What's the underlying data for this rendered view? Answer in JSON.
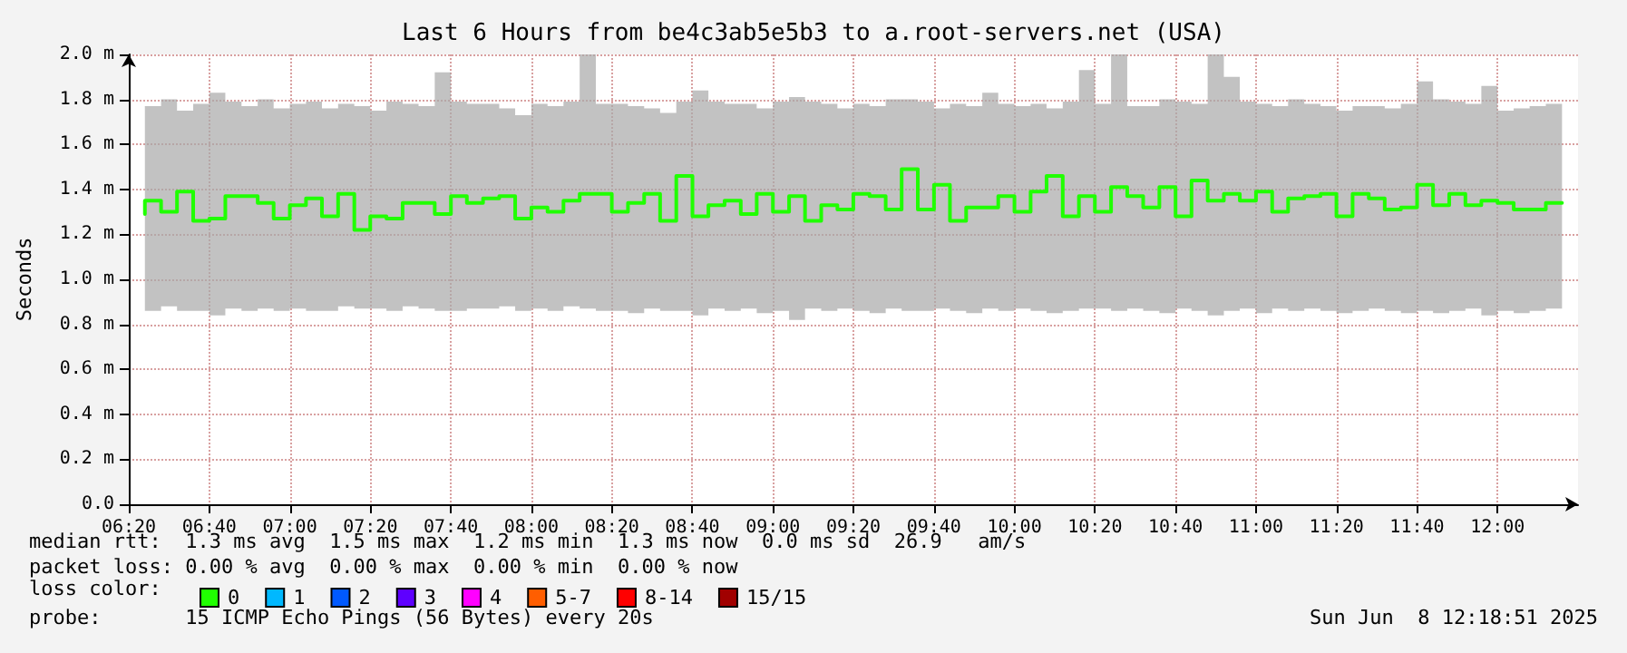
{
  "chart_data": {
    "type": "step",
    "title": "Last 6 Hours from be4c3ab5e5b3 to a.root-servers.net (USA)",
    "ylabel": "Seconds",
    "x": [
      6.4,
      6.467,
      6.533,
      6.6,
      6.667,
      6.733,
      6.8,
      6.867,
      6.933,
      7.0,
      7.067,
      7.133,
      7.2,
      7.267,
      7.333,
      7.4,
      7.467,
      7.533,
      7.6,
      7.667,
      7.733,
      7.8,
      7.867,
      7.933,
      8.0,
      8.067,
      8.133,
      8.2,
      8.267,
      8.333,
      8.4,
      8.467,
      8.533,
      8.6,
      8.667,
      8.733,
      8.8,
      8.867,
      8.933,
      9.0,
      9.067,
      9.133,
      9.2,
      9.267,
      9.333,
      9.4,
      9.467,
      9.533,
      9.6,
      9.667,
      9.733,
      9.8,
      9.867,
      9.933,
      10.0,
      10.067,
      10.133,
      10.2,
      10.267,
      10.333,
      10.4,
      10.467,
      10.533,
      10.6,
      10.667,
      10.733,
      10.8,
      10.867,
      10.933,
      11.0,
      11.067,
      11.133,
      11.2,
      11.267,
      11.333,
      11.4,
      11.467,
      11.533,
      11.6,
      11.667,
      11.733,
      11.8,
      11.867,
      11.933,
      12.0,
      12.067,
      12.133,
      12.2,
      12.267
    ],
    "series": [
      {
        "name": "0",
        "color": "#20ff00",
        "values": [
          1.29,
          1.35,
          1.3,
          1.39,
          1.26,
          1.27,
          1.37,
          1.37,
          1.34,
          1.27,
          1.33,
          1.36,
          1.28,
          1.38,
          1.22,
          1.28,
          1.27,
          1.34,
          1.34,
          1.29,
          1.37,
          1.34,
          1.36,
          1.37,
          1.27,
          1.32,
          1.3,
          1.35,
          1.38,
          1.38,
          1.3,
          1.34,
          1.38,
          1.26,
          1.46,
          1.28,
          1.33,
          1.35,
          1.29,
          1.38,
          1.3,
          1.37,
          1.26,
          1.33,
          1.31,
          1.38,
          1.37,
          1.31,
          1.49,
          1.31,
          1.42,
          1.26,
          1.32,
          1.32,
          1.37,
          1.3,
          1.39,
          1.46,
          1.28,
          1.37,
          1.3,
          1.41,
          1.37,
          1.32,
          1.41,
          1.28,
          1.44,
          1.35,
          1.38,
          1.35,
          1.39,
          1.3,
          1.36,
          1.37,
          1.38,
          1.28,
          1.38,
          1.36,
          1.31,
          1.32,
          1.42,
          1.33,
          1.38,
          1.33,
          1.35,
          1.34,
          1.31,
          1.31,
          1.34
        ],
        "lower": [
          0.86,
          0.86,
          0.88,
          0.86,
          0.86,
          0.84,
          0.87,
          0.86,
          0.87,
          0.86,
          0.87,
          0.86,
          0.86,
          0.88,
          0.87,
          0.87,
          0.86,
          0.88,
          0.87,
          0.86,
          0.86,
          0.87,
          0.87,
          0.88,
          0.86,
          0.87,
          0.86,
          0.88,
          0.87,
          0.86,
          0.86,
          0.85,
          0.87,
          0.86,
          0.86,
          0.84,
          0.87,
          0.86,
          0.87,
          0.85,
          0.86,
          0.82,
          0.87,
          0.86,
          0.87,
          0.86,
          0.85,
          0.87,
          0.86,
          0.86,
          0.87,
          0.86,
          0.85,
          0.87,
          0.86,
          0.87,
          0.86,
          0.85,
          0.86,
          0.87,
          0.87,
          0.86,
          0.87,
          0.86,
          0.85,
          0.87,
          0.86,
          0.84,
          0.86,
          0.87,
          0.85,
          0.87,
          0.86,
          0.87,
          0.86,
          0.85,
          0.86,
          0.87,
          0.86,
          0.85,
          0.86,
          0.85,
          0.86,
          0.87,
          0.84,
          0.86,
          0.85,
          0.86,
          0.87
        ],
        "upper": [
          1.78,
          1.77,
          1.8,
          1.75,
          1.78,
          1.83,
          1.79,
          1.77,
          1.8,
          1.76,
          1.78,
          1.79,
          1.76,
          1.78,
          1.77,
          1.75,
          1.79,
          1.78,
          1.77,
          1.92,
          1.79,
          1.78,
          1.78,
          1.76,
          1.73,
          1.78,
          1.77,
          1.79,
          2.0,
          1.78,
          1.78,
          1.77,
          1.76,
          1.74,
          1.79,
          1.84,
          1.79,
          1.78,
          1.78,
          1.76,
          1.79,
          1.81,
          1.79,
          1.78,
          1.76,
          1.78,
          1.77,
          1.8,
          1.8,
          1.79,
          1.76,
          1.78,
          1.77,
          1.83,
          1.78,
          1.77,
          1.78,
          1.76,
          1.79,
          1.93,
          1.78,
          2.0,
          1.77,
          1.77,
          1.8,
          1.79,
          1.78,
          2.0,
          1.9,
          1.79,
          1.78,
          1.77,
          1.8,
          1.78,
          1.77,
          1.75,
          1.77,
          1.77,
          1.76,
          1.78,
          1.88,
          1.8,
          1.79,
          1.78,
          1.86,
          1.75,
          1.76,
          1.77,
          1.78
        ]
      },
      {
        "name": "1",
        "color": "#00b8ff",
        "values": [
          null,
          null,
          null,
          null,
          null,
          null,
          null,
          null,
          null,
          null,
          null,
          null,
          null,
          null,
          null,
          null,
          null,
          null,
          null,
          null,
          null,
          null,
          null,
          null,
          null,
          null,
          null,
          null,
          null,
          null,
          null,
          null,
          null,
          null,
          null,
          null,
          null,
          null,
          null,
          null,
          null,
          null,
          null,
          null,
          null,
          null,
          null,
          null,
          null,
          null,
          null,
          null,
          null,
          null,
          null,
          null,
          null,
          null,
          null,
          null,
          null,
          null,
          null,
          null,
          null,
          null,
          null,
          null,
          null,
          null,
          null,
          null,
          null,
          null,
          null,
          null,
          null,
          null,
          null,
          null,
          null,
          null,
          null,
          null,
          null,
          null,
          null,
          null,
          null
        ]
      },
      {
        "name": "2",
        "color": "#0059ff",
        "values": [
          null,
          null,
          null,
          null,
          null,
          null,
          null,
          null,
          null,
          null,
          null,
          null,
          null,
          null,
          null,
          null,
          null,
          null,
          null,
          null,
          null,
          null,
          null,
          null,
          null,
          null,
          null,
          null,
          null,
          null,
          null,
          null,
          null,
          null,
          null,
          null,
          null,
          null,
          null,
          null,
          null,
          null,
          null,
          null,
          null,
          null,
          null,
          null,
          null,
          null,
          null,
          null,
          null,
          null,
          null,
          null,
          null,
          null,
          null,
          null,
          null,
          null,
          null,
          null,
          null,
          null,
          null,
          null,
          null,
          null,
          null,
          null,
          null,
          null,
          null,
          null,
          null,
          null,
          null,
          null,
          null,
          null,
          null,
          null,
          null,
          null,
          null,
          null,
          null
        ]
      },
      {
        "name": "3",
        "color": "#5e00ff",
        "values": [
          null,
          null,
          null,
          null,
          null,
          null,
          null,
          null,
          null,
          null,
          null,
          null,
          null,
          null,
          null,
          null,
          null,
          null,
          null,
          null,
          null,
          null,
          null,
          null,
          null,
          null,
          null,
          null,
          null,
          null,
          null,
          null,
          null,
          null,
          null,
          null,
          null,
          null,
          null,
          null,
          null,
          null,
          null,
          null,
          null,
          null,
          null,
          null,
          null,
          null,
          null,
          null,
          null,
          null,
          null,
          null,
          null,
          null,
          null,
          null,
          null,
          null,
          null,
          null,
          null,
          null,
          null,
          null,
          null,
          null,
          null,
          null,
          null,
          null,
          null,
          null,
          null,
          null,
          null,
          null,
          null,
          null,
          null,
          null,
          null,
          null,
          null,
          null,
          null
        ]
      },
      {
        "name": "4",
        "color": "#ff00ff",
        "values": [
          null,
          null,
          null,
          null,
          null,
          null,
          null,
          null,
          null,
          null,
          null,
          null,
          null,
          null,
          null,
          null,
          null,
          null,
          null,
          null,
          null,
          null,
          null,
          null,
          null,
          null,
          null,
          null,
          null,
          null,
          null,
          null,
          null,
          null,
          null,
          null,
          null,
          null,
          null,
          null,
          null,
          null,
          null,
          null,
          null,
          null,
          null,
          null,
          null,
          null,
          null,
          null,
          null,
          null,
          null,
          null,
          null,
          null,
          null,
          null,
          null,
          null,
          null,
          null,
          null,
          null,
          null,
          null,
          null,
          null,
          null,
          null,
          null,
          null,
          null,
          null,
          null,
          null,
          null,
          null,
          null,
          null,
          null,
          null,
          null,
          null,
          null,
          null,
          null
        ]
      },
      {
        "name": "5-7",
        "color": "#ff5e00",
        "values": [
          null,
          null,
          null,
          null,
          null,
          null,
          null,
          null,
          null,
          null,
          null,
          null,
          null,
          null,
          null,
          null,
          null,
          null,
          null,
          null,
          null,
          null,
          null,
          null,
          null,
          null,
          null,
          null,
          null,
          null,
          null,
          null,
          null,
          null,
          null,
          null,
          null,
          null,
          null,
          null,
          null,
          null,
          null,
          null,
          null,
          null,
          null,
          null,
          null,
          null,
          null,
          null,
          null,
          null,
          null,
          null,
          null,
          null,
          null,
          null,
          null,
          null,
          null,
          null,
          null,
          null,
          null,
          null,
          null,
          null,
          null,
          null,
          null,
          null,
          null,
          null,
          null,
          null,
          null,
          null,
          null,
          null,
          null,
          null,
          null,
          null,
          null,
          null,
          null
        ]
      },
      {
        "name": "8-14",
        "color": "#ff0000",
        "values": [
          null,
          null,
          null,
          null,
          null,
          null,
          null,
          null,
          null,
          null,
          null,
          null,
          null,
          null,
          null,
          null,
          null,
          null,
          null,
          null,
          null,
          null,
          null,
          null,
          null,
          null,
          null,
          null,
          null,
          null,
          null,
          null,
          null,
          null,
          null,
          null,
          null,
          null,
          null,
          null,
          null,
          null,
          null,
          null,
          null,
          null,
          null,
          null,
          null,
          null,
          null,
          null,
          null,
          null,
          null,
          null,
          null,
          null,
          null,
          null,
          null,
          null,
          null,
          null,
          null,
          null,
          null,
          null,
          null,
          null,
          null,
          null,
          null,
          null,
          null,
          null,
          null,
          null,
          null,
          null,
          null,
          null,
          null,
          null,
          null,
          null,
          null,
          null,
          null
        ]
      },
      {
        "name": "15/15",
        "color": "#a10000",
        "values": [
          null,
          null,
          null,
          null,
          null,
          null,
          null,
          null,
          null,
          null,
          null,
          null,
          null,
          null,
          null,
          null,
          null,
          null,
          null,
          null,
          null,
          null,
          null,
          null,
          null,
          null,
          null,
          null,
          null,
          null,
          null,
          null,
          null,
          null,
          null,
          null,
          null,
          null,
          null,
          null,
          null,
          null,
          null,
          null,
          null,
          null,
          null,
          null,
          null,
          null,
          null,
          null,
          null,
          null,
          null,
          null,
          null,
          null,
          null,
          null,
          null,
          null,
          null,
          null,
          null,
          null,
          null,
          null,
          null,
          null,
          null,
          null,
          null,
          null,
          null,
          null,
          null,
          null,
          null,
          null,
          null,
          null,
          null,
          null,
          null,
          null,
          null,
          null,
          null
        ]
      }
    ],
    "legend_title": "loss color:",
    "legend": "bottom left",
    "xlim": [
      6.3333,
      12.3333
    ],
    "xticks": [
      {
        "value": 6.3333,
        "label": "06:20"
      },
      {
        "value": 6.6667,
        "label": "06:40"
      },
      {
        "value": 7,
        "label": "07:00"
      },
      {
        "value": 7.3333,
        "label": "07:20"
      },
      {
        "value": 7.6667,
        "label": "07:40"
      },
      {
        "value": 8,
        "label": "08:00"
      },
      {
        "value": 8.3333,
        "label": "08:20"
      },
      {
        "value": 8.6667,
        "label": "08:40"
      },
      {
        "value": 9,
        "label": "09:00"
      },
      {
        "value": 9.3333,
        "label": "09:20"
      },
      {
        "value": 9.6667,
        "label": "09:40"
      },
      {
        "value": 10,
        "label": "10:00"
      },
      {
        "value": 10.3333,
        "label": "10:20"
      },
      {
        "value": 10.6667,
        "label": "10:40"
      },
      {
        "value": 11,
        "label": "11:00"
      },
      {
        "value": 11.3333,
        "label": "11:20"
      },
      {
        "value": 11.6667,
        "label": "11:40"
      },
      {
        "value": 12,
        "label": "12:00"
      }
    ],
    "ylim": [
      0,
      2.0
    ],
    "yticks": [
      {
        "value": 0,
        "label": "0.0"
      },
      {
        "value": 0.2,
        "label": "0.2 m"
      },
      {
        "value": 0.4,
        "label": "0.4 m"
      },
      {
        "value": 0.6,
        "label": "0.6 m"
      },
      {
        "value": 0.8,
        "label": "0.8 m"
      },
      {
        "value": 1.0,
        "label": "1.0 m"
      },
      {
        "value": 1.2,
        "label": "1.2 m"
      },
      {
        "value": 1.4,
        "label": "1.4 m"
      },
      {
        "value": 1.6,
        "label": "1.6 m"
      },
      {
        "value": 1.8,
        "label": "1.8 m"
      },
      {
        "value": 2.0,
        "label": "2.0 m"
      }
    ],
    "grid": true,
    "marker": "none",
    "line_style": "solid",
    "annotations": [
      "median rtt:  1.3 ms avg  1.5 ms max  1.2 ms min  1.3 ms now  0.0 ms sd  26.9   am/s",
      "packet loss: 0.00 % avg  0.00 % max  0.00 % min  0.00 % now",
      "probe:       15 ICMP Echo Pings (56 Bytes) every 20s",
      "Sun Jun  8 12:18:51 2025"
    ]
  }
}
